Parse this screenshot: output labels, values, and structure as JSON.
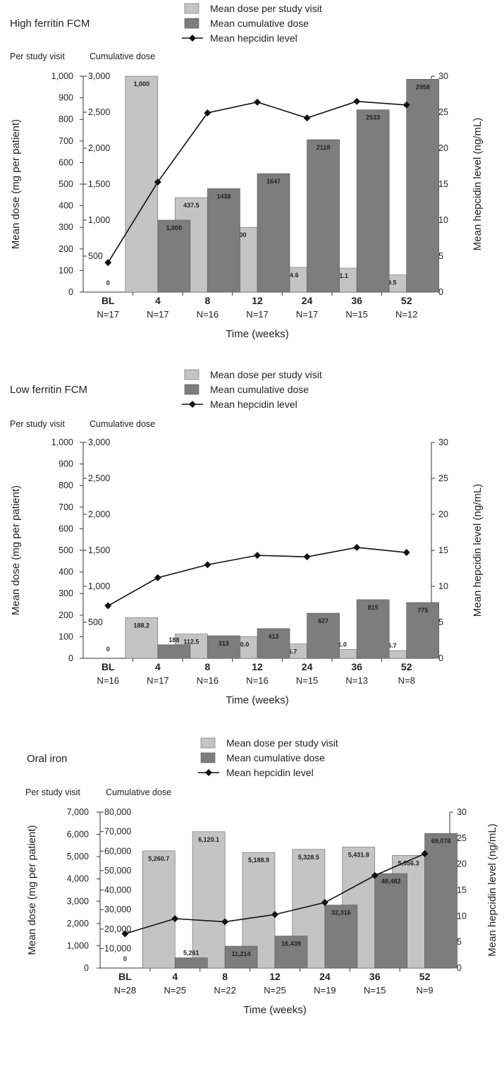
{
  "chart_data": [
    {
      "type": "bar",
      "title": "High ferritin FCM",
      "legend": [
        "Mean dose per study visit",
        "Mean cumulative dose",
        "Mean hepcidin level"
      ],
      "scale_headers": [
        "Per study visit",
        "Cumulative dose"
      ],
      "ylabel": "Mean dose (mg per patient)",
      "y2label": "Mean hepcidin level (ng/mL)",
      "xlabel": "Time (weeks)",
      "categories": [
        "BL",
        "4",
        "8",
        "12",
        "24",
        "36",
        "52"
      ],
      "n_labels": [
        "N=17",
        "N=17",
        "N=16",
        "N=17",
        "N=17",
        "N=15",
        "N=12"
      ],
      "ylim_visit": [
        0,
        1000
      ],
      "yticks_visit": [
        "0",
        "100",
        "200",
        "300",
        "400",
        "500",
        "600",
        "700",
        "800",
        "900",
        "1,000"
      ],
      "ylim_cum": [
        0,
        3000
      ],
      "yticks_cum": [
        "500",
        "1,000",
        "1,500",
        "2,000",
        "2,500",
        "3,000"
      ],
      "ylim_hep": [
        0,
        30
      ],
      "yticks_hep": [
        "0",
        "5",
        "10",
        "15",
        "20",
        "25",
        "30"
      ],
      "series": [
        {
          "name": "Mean dose per study visit",
          "values": [
            0,
            1000,
            437.5,
            300,
            114.6,
            111.1,
            79.5
          ],
          "labels": [
            "0",
            "1,000",
            "437.5",
            "300",
            "114.6",
            "111.1",
            "79.5"
          ]
        },
        {
          "name": "Mean cumulative dose",
          "values": [
            null,
            1000,
            1438,
            1647,
            2118,
            2533,
            2958
          ],
          "labels": [
            "",
            "1,000",
            "1438",
            "1647",
            "2118",
            "2533",
            "2958"
          ]
        },
        {
          "name": "Mean hepcidin level",
          "values": [
            4.1,
            15.3,
            24.9,
            26.4,
            24.2,
            26.5,
            26.0
          ]
        }
      ],
      "colors": {
        "visit": "#c4c4c4",
        "cum": "#7d7d7d",
        "line": "#111111"
      }
    },
    {
      "type": "bar",
      "title": "Low ferritin FCM",
      "legend": [
        "Mean dose per study visit",
        "Mean cumulative dose",
        "Mean hepcidin level"
      ],
      "scale_headers": [
        "Per study visit",
        "Cumulative dose"
      ],
      "ylabel": "Mean dose (mg per patient)",
      "y2label": "Mean hepcidin level (ng/mL)",
      "xlabel": "Time (weeks)",
      "categories": [
        "BL",
        "4",
        "8",
        "12",
        "24",
        "36",
        "52"
      ],
      "n_labels": [
        "N=16",
        "N=17",
        "N=16",
        "N=16",
        "N=15",
        "N=13",
        "N=8"
      ],
      "ylim_visit": [
        0,
        1000
      ],
      "yticks_visit": [
        "0",
        "100",
        "200",
        "300",
        "400",
        "500",
        "600",
        "700",
        "800",
        "900",
        "1,000"
      ],
      "ylim_cum": [
        0,
        3000
      ],
      "yticks_cum": [
        "500",
        "1,000",
        "1,500",
        "2,000",
        "2,500",
        "3,000"
      ],
      "ylim_hep": [
        0,
        30
      ],
      "yticks_hep": [
        "0",
        "5",
        "10",
        "15",
        "20",
        "25",
        "30"
      ],
      "series": [
        {
          "name": "Mean dose per study visit",
          "values": [
            0,
            188.2,
            112.5,
            100.0,
            66.7,
            41.0,
            35.7
          ],
          "labels": [
            "0",
            "188.2",
            "112.5",
            "100.0",
            "66.7",
            "41.0",
            "35.7"
          ]
        },
        {
          "name": "Mean cumulative dose",
          "values": [
            null,
            188,
            313,
            413,
            627,
            815,
            775
          ],
          "labels": [
            "",
            "188",
            "313",
            "413",
            "627",
            "815",
            "775"
          ]
        },
        {
          "name": "Mean hepcidin level",
          "values": [
            7.3,
            11.2,
            13.0,
            14.3,
            14.1,
            15.4,
            14.7
          ]
        }
      ],
      "colors": {
        "visit": "#c4c4c4",
        "cum": "#7d7d7d",
        "line": "#111111"
      }
    },
    {
      "type": "bar",
      "title": "Oral iron",
      "legend": [
        "Mean dose per study visit",
        "Mean cumulative dose",
        "Mean hepcidin level"
      ],
      "scale_headers": [
        "Per study visit",
        "Cumulative dose"
      ],
      "ylabel": "Mean dose (mg per patient)",
      "y2label": "Mean hepcidin level (ng/mL)",
      "xlabel": "Time (weeks)",
      "categories": [
        "BL",
        "4",
        "8",
        "12",
        "24",
        "36",
        "52"
      ],
      "n_labels": [
        "N=28",
        "N=25",
        "N=22",
        "N=25",
        "N=19",
        "N=15",
        "N=9"
      ],
      "ylim_visit": [
        0,
        7000
      ],
      "yticks_visit": [
        "0",
        "1,000",
        "2,000",
        "3,000",
        "4,000",
        "5,000",
        "6,000",
        "7,000"
      ],
      "ylim_cum": [
        0,
        80000
      ],
      "yticks_cum": [
        "10,000",
        "20,000",
        "30,000",
        "40,000",
        "50,000",
        "60,000",
        "70,000",
        "80,000"
      ],
      "ylim_hep": [
        0,
        30
      ],
      "yticks_hep": [
        "0",
        "5",
        "10",
        "15",
        "20",
        "25",
        "30"
      ],
      "series": [
        {
          "name": "Mean dose per study visit",
          "values": [
            0,
            5260.7,
            6120.1,
            5188.9,
            5328.5,
            5431.8,
            5056.3
          ],
          "labels": [
            "0",
            "5,260.7",
            "6,120.1",
            "5,188.9",
            "5,328.5",
            "5,431.8",
            "5,056.3"
          ]
        },
        {
          "name": "Mean cumulative dose",
          "values": [
            null,
            5261,
            11214,
            16439,
            32316,
            48482,
            69078
          ],
          "labels": [
            "",
            "5,261",
            "11,214",
            "16,439",
            "32,316",
            "48,482",
            "69,078"
          ]
        },
        {
          "name": "Mean hepcidin level",
          "values": [
            6.6,
            9.5,
            8.9,
            10.3,
            12.6,
            17.8,
            22.0
          ]
        }
      ],
      "colors": {
        "visit": "#c4c4c4",
        "cum": "#7d7d7d",
        "line": "#111111"
      }
    }
  ]
}
